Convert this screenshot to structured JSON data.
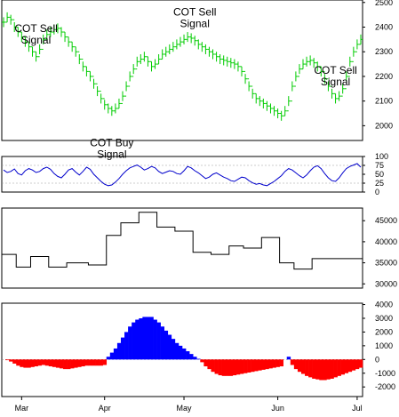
{
  "chart_data": [
    {
      "type": "ohlc",
      "panel": "price",
      "color": "#00cc00",
      "ylim": [
        1940,
        2510
      ],
      "yticks": [
        2000,
        2100,
        2200,
        2300,
        2400,
        2500
      ],
      "annotations": [
        {
          "line1": "COT Sell",
          "line2": "Signal",
          "bar": 9
        },
        {
          "line1": "COT Buy",
          "line2": "Signal",
          "bar": 30
        },
        {
          "line1": "COT Sell",
          "line2": "Signal",
          "bar": 53
        },
        {
          "line1": "COT Sell",
          "line2": "Signal",
          "bar": 92
        }
      ],
      "x_labels": [
        {
          "label": "Mar",
          "bar": 5
        },
        {
          "label": "Apr",
          "bar": 28
        },
        {
          "label": "May",
          "bar": 50
        },
        {
          "label": "Jun",
          "bar": 76
        },
        {
          "label": "Jul",
          "bar": 98
        }
      ],
      "n_bars": 100,
      "close": [
        2420,
        2440,
        2430,
        2400,
        2380,
        2360,
        2340,
        2320,
        2300,
        2280,
        2310,
        2350,
        2370,
        2380,
        2390,
        2395,
        2380,
        2360,
        2340,
        2320,
        2300,
        2270,
        2240,
        2220,
        2200,
        2170,
        2140,
        2110,
        2085,
        2070,
        2060,
        2070,
        2090,
        2120,
        2160,
        2200,
        2230,
        2260,
        2270,
        2280,
        2260,
        2240,
        2250,
        2270,
        2290,
        2300,
        2310,
        2320,
        2330,
        2340,
        2350,
        2360,
        2355,
        2345,
        2330,
        2320,
        2310,
        2300,
        2290,
        2280,
        2270,
        2265,
        2260,
        2255,
        2250,
        2240,
        2220,
        2190,
        2160,
        2130,
        2110,
        2100,
        2090,
        2080,
        2070,
        2060,
        2050,
        2040,
        2060,
        2100,
        2160,
        2200,
        2230,
        2250,
        2260,
        2265,
        2255,
        2240,
        2220,
        2190,
        2160,
        2130,
        2110,
        2120,
        2150,
        2200,
        2260,
        2300,
        2330,
        2350
      ],
      "range": 40
    },
    {
      "type": "line",
      "panel": "index",
      "color": "#0000cc",
      "ylim": [
        0,
        100
      ],
      "yticks": [
        0,
        25,
        50,
        75,
        100
      ],
      "values": [
        62,
        55,
        58,
        65,
        52,
        48,
        60,
        66,
        62,
        55,
        58,
        66,
        70,
        64,
        52,
        44,
        40,
        50,
        62,
        66,
        56,
        48,
        58,
        70,
        64,
        50,
        40,
        30,
        22,
        18,
        20,
        28,
        38,
        50,
        60,
        68,
        72,
        76,
        70,
        62,
        66,
        72,
        68,
        58,
        52,
        56,
        60,
        58,
        52,
        50,
        60,
        72,
        68,
        60,
        54,
        46,
        38,
        42,
        50,
        54,
        48,
        42,
        38,
        32,
        30,
        36,
        42,
        40,
        32,
        26,
        22,
        24,
        20,
        18,
        24,
        30,
        38,
        46,
        58,
        66,
        62,
        54,
        46,
        40,
        48,
        60,
        70,
        74,
        66,
        52,
        40,
        32,
        30,
        40,
        54,
        66,
        72,
        76,
        80,
        70
      ],
      "band": [
        25,
        75
      ]
    },
    {
      "type": "step",
      "panel": "open-interest",
      "color": "#000000",
      "ylim": [
        29000,
        48000
      ],
      "yticks": [
        30000,
        35000,
        40000,
        45000
      ],
      "values": [
        37000,
        37000,
        37000,
        37000,
        34000,
        34000,
        34000,
        34000,
        36500,
        36500,
        36500,
        36500,
        36500,
        34000,
        34000,
        34000,
        34000,
        34000,
        35000,
        35000,
        35000,
        35000,
        35000,
        35000,
        34500,
        34500,
        34500,
        34500,
        34500,
        41500,
        41500,
        41500,
        41500,
        44500,
        44500,
        44500,
        44500,
        44500,
        47000,
        47000,
        47000,
        47000,
        47000,
        43500,
        43500,
        43500,
        43500,
        43500,
        42500,
        42500,
        42500,
        42500,
        42500,
        37500,
        37500,
        37500,
        37500,
        37500,
        37000,
        37000,
        37000,
        37000,
        37000,
        39000,
        39000,
        39000,
        39000,
        38500,
        38500,
        38500,
        38500,
        38500,
        41000,
        41000,
        41000,
        41000,
        41000,
        35000,
        35000,
        35000,
        35000,
        33500,
        33500,
        33500,
        33500,
        33500,
        36000,
        36000,
        36000,
        36000,
        36000,
        36000,
        36000,
        36000,
        36000,
        36000,
        36000,
        36000,
        36000,
        36000
      ],
      "x_start_bar": 0
    },
    {
      "type": "histogram",
      "panel": "oscillator",
      "positive_color": "#0000ff",
      "negative_color": "#ff0000",
      "ylim": [
        -2700,
        4100
      ],
      "yticks": [
        -2000,
        -1000,
        0,
        1000,
        2000,
        3000,
        4000
      ],
      "values": [
        0,
        -50,
        -150,
        -300,
        -450,
        -550,
        -600,
        -600,
        -550,
        -500,
        -450,
        -400,
        -450,
        -500,
        -550,
        -600,
        -650,
        -700,
        -700,
        -650,
        -600,
        -550,
        -500,
        -450,
        -450,
        -450,
        -450,
        -450,
        -400,
        200,
        500,
        800,
        1200,
        1600,
        2000,
        2400,
        2700,
        2900,
        3000,
        3100,
        3100,
        3100,
        2900,
        2700,
        2400,
        2100,
        1800,
        1500,
        1200,
        1000,
        800,
        600,
        400,
        200,
        50,
        -200,
        -500,
        -700,
        -900,
        -1050,
        -1150,
        -1200,
        -1200,
        -1200,
        -1150,
        -1100,
        -1050,
        -1000,
        -950,
        -900,
        -850,
        -800,
        -750,
        -700,
        -650,
        -600,
        -550,
        -500,
        0,
        200,
        -400,
        -700,
        -900,
        -1050,
        -1200,
        -1300,
        -1400,
        -1450,
        -1500,
        -1500,
        -1450,
        -1400,
        -1300,
        -1200,
        -1100,
        -1000,
        -900,
        -800,
        -700,
        -600
      ]
    }
  ]
}
